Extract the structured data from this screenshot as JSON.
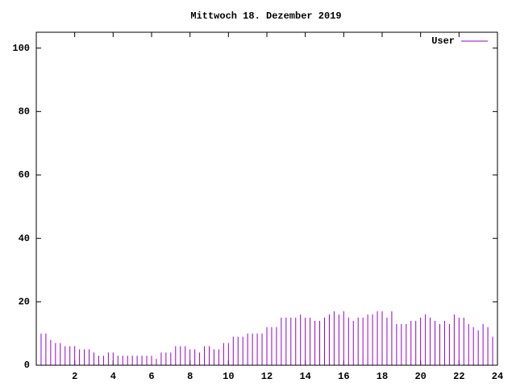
{
  "chart_data": {
    "type": "impulse",
    "title": "Mittwoch 18. Dezember 2019",
    "x": [
      0,
      0.25,
      0.5,
      0.75,
      1,
      1.25,
      1.5,
      1.75,
      2,
      2.25,
      2.5,
      2.75,
      3,
      3.25,
      3.5,
      3.75,
      4,
      4.25,
      4.5,
      4.75,
      5,
      5.25,
      5.5,
      5.75,
      6,
      6.25,
      6.5,
      6.75,
      7,
      7.25,
      7.5,
      7.75,
      8,
      8.25,
      8.5,
      8.75,
      9,
      9.25,
      9.5,
      9.75,
      10,
      10.25,
      10.5,
      10.75,
      11,
      11.25,
      11.5,
      11.75,
      12,
      12.25,
      12.5,
      12.75,
      13,
      13.25,
      13.5,
      13.75,
      14,
      14.25,
      14.5,
      14.75,
      15,
      15.25,
      15.5,
      15.75,
      16,
      16.25,
      16.5,
      16.75,
      17,
      17.25,
      17.5,
      17.75,
      18,
      18.25,
      18.5,
      18.75,
      19,
      19.25,
      19.5,
      19.75,
      20,
      20.25,
      20.5,
      20.75,
      21,
      21.25,
      21.5,
      21.75,
      22,
      22.25,
      22.5,
      22.75,
      23,
      23.25,
      23.5,
      23.75,
      24
    ],
    "series": [
      {
        "name": "User",
        "color": "#9400d3",
        "values": [
          10,
          10,
          10,
          8,
          7,
          7,
          6,
          6,
          6,
          5,
          5,
          5,
          4,
          3,
          3,
          4,
          4,
          3,
          3,
          3,
          3,
          3,
          3,
          3,
          3,
          2,
          4,
          4,
          4,
          6,
          6,
          6,
          5,
          5,
          4,
          6,
          6,
          5,
          5,
          7,
          7,
          9,
          9,
          9,
          10,
          10,
          10,
          10,
          12,
          12,
          12,
          15,
          15,
          15,
          15,
          16,
          15,
          15,
          14,
          14,
          15,
          16,
          17,
          16,
          17,
          15,
          14,
          15,
          15,
          16,
          16,
          17,
          17,
          15,
          17,
          13,
          13,
          13,
          14,
          14,
          15,
          16,
          15,
          14,
          13,
          14,
          13,
          16,
          15,
          15,
          13,
          12,
          11,
          13,
          12,
          9,
          8
        ]
      }
    ],
    "xlim": [
      0,
      24
    ],
    "xticks": [
      2,
      4,
      6,
      8,
      10,
      12,
      14,
      16,
      18,
      20,
      22,
      24
    ],
    "ylim": [
      0,
      105
    ],
    "yticks": [
      0,
      20,
      40,
      60,
      80,
      100
    ],
    "legend": "top-right"
  }
}
